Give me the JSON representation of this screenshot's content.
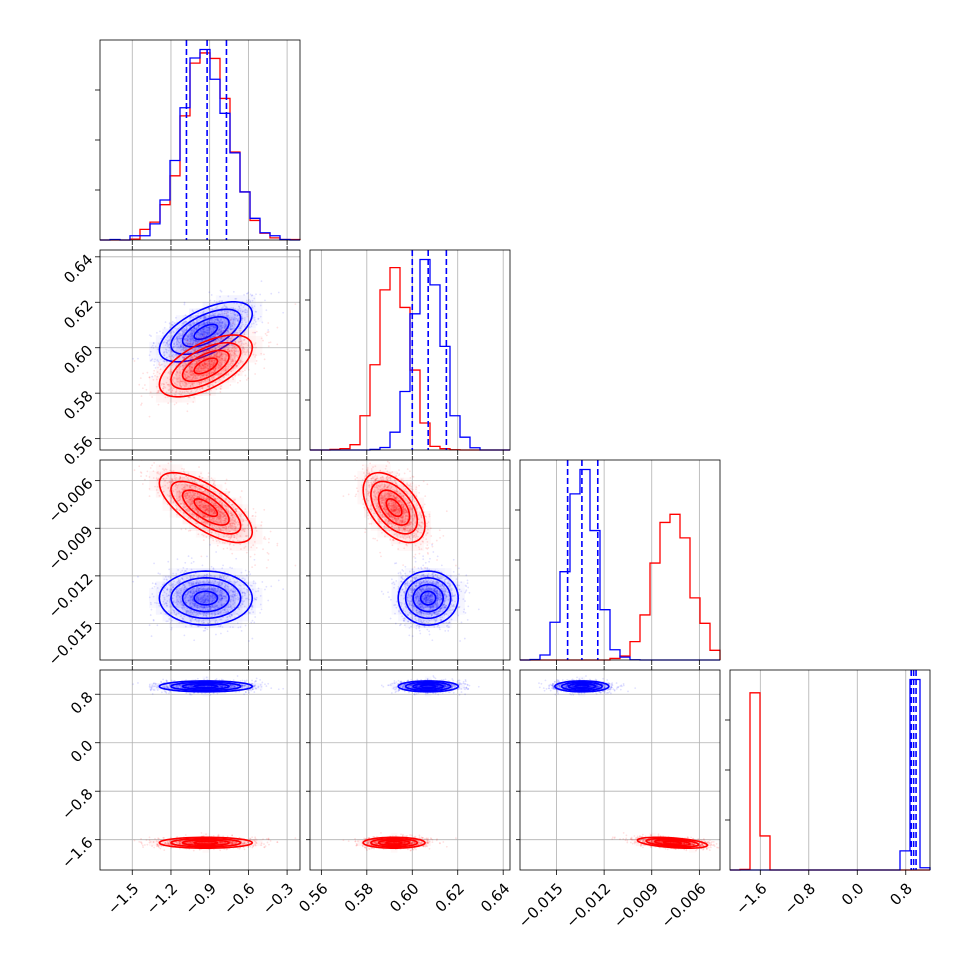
{
  "chart_data": {
    "type": "corner",
    "title": "",
    "grid": true,
    "legend": "none",
    "parameters": [
      {
        "name": "",
        "range": [
          -1.75,
          -0.2
        ],
        "ticks": [
          -1.5,
          -1.2,
          -0.9,
          -0.6,
          -0.3
        ],
        "tick_labels": [
          "−1.5",
          "−1.2",
          "−0.9",
          "−0.6",
          "−0.3"
        ]
      },
      {
        "name": "",
        "range": [
          0.555,
          0.643
        ],
        "ticks": [
          0.56,
          0.58,
          0.6,
          0.62,
          0.64
        ],
        "tick_labels": [
          "0.56",
          "0.58",
          "0.60",
          "0.62",
          "0.64"
        ]
      },
      {
        "name": "",
        "range": [
          -0.0173,
          -0.0047
        ],
        "ticks": [
          -0.015,
          -0.012,
          -0.009,
          -0.006
        ],
        "tick_labels": [
          "−0.015",
          "−0.012",
          "−0.009",
          "−0.006"
        ]
      },
      {
        "name": "",
        "range": [
          -2.1,
          1.2
        ],
        "ticks": [
          -1.6,
          -0.8,
          0.0,
          0.8
        ],
        "tick_labels": [
          "−1.6",
          "−0.8",
          "0.0",
          "0.8"
        ]
      }
    ],
    "series": [
      {
        "name": "",
        "color": "#0000ff",
        "mean": [
          -0.93,
          0.607,
          -0.0134,
          0.93
        ],
        "sd": [
          0.18,
          0.0066,
          0.00085,
          0.045
        ],
        "corr": [
          [
            1,
            0.6,
            0,
            0
          ],
          [
            0.6,
            1,
            0,
            0
          ],
          [
            0,
            0,
            1,
            0
          ],
          [
            0,
            0,
            0,
            1
          ]
        ],
        "quantiles": [
          [
            -1.08,
            -0.92,
            -0.77
          ],
          [
            0.6,
            0.607,
            0.615
          ],
          [
            -0.0143,
            -0.0134,
            -0.0124
          ],
          [
            0.89,
            0.93,
            0.97
          ]
        ]
      },
      {
        "name": "",
        "color": "#ff0000",
        "mean": [
          -0.93,
          0.592,
          -0.0077,
          -1.65
        ],
        "sd": [
          0.18,
          0.0068,
          0.0011,
          0.045
        ],
        "corr": [
          [
            1,
            0.6,
            -0.7,
            0
          ],
          [
            0.6,
            1,
            -0.5,
            0
          ],
          [
            -0.7,
            -0.5,
            1,
            -0.45
          ],
          [
            0,
            0,
            -0.45,
            1
          ]
        ]
      }
    ]
  },
  "colors": {
    "blue": "#0000ff",
    "red": "#ff0000",
    "grid": "#b0b0b0",
    "frame": "#000000"
  }
}
